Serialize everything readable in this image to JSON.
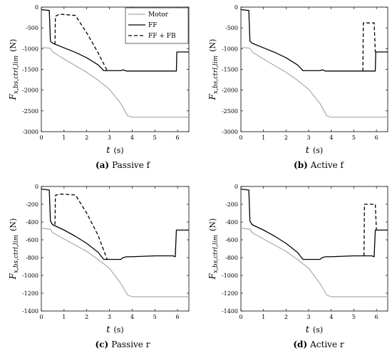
{
  "chart_data": [
    {
      "type": "line",
      "caption_letter": "(a)",
      "caption_text": "Passive f",
      "xlabel_var": "t",
      "xlabel_unit": "(s)",
      "ylabel_sym": "F",
      "ylabel_sub": "x,bs,ctrl,lim",
      "ylabel_unit": "(N)",
      "xlim": [
        0,
        6.5
      ],
      "ylim": [
        -3000,
        0
      ],
      "xticks": [
        "0",
        "1",
        "2",
        "3",
        "4",
        "5",
        "6"
      ],
      "yticks": [
        "-3000",
        "-2500",
        "-2000",
        "-1500",
        "-1000",
        "-500",
        "0"
      ],
      "legend": {
        "entries": [
          "Motor",
          "FF",
          "FF + FB"
        ],
        "position": "top-right"
      },
      "series": [
        {
          "name": "Motor",
          "color": "#aaaaaa",
          "dash": false,
          "x": [
            0,
            0.4,
            0.5,
            1.0,
            1.5,
            2.0,
            2.5,
            3.0,
            3.5,
            3.8,
            4.0,
            5.0,
            6.5
          ],
          "y": [
            -970,
            -990,
            -1080,
            -1250,
            -1410,
            -1570,
            -1760,
            -1980,
            -2320,
            -2620,
            -2650,
            -2650,
            -2650
          ]
        },
        {
          "name": "FF",
          "color": "#000000",
          "dash": false,
          "x": [
            0,
            0.35,
            0.4,
            0.5,
            1.0,
            1.5,
            2.0,
            2.5,
            2.75,
            3.5,
            3.6,
            3.75,
            4.0,
            5.0,
            5.95,
            5.97,
            6.5
          ],
          "y": [
            -60,
            -80,
            -820,
            -870,
            -980,
            -1090,
            -1220,
            -1390,
            -1530,
            -1530,
            -1510,
            -1540,
            -1540,
            -1540,
            -1540,
            -1080,
            -1080
          ]
        },
        {
          "name": "FF + FB",
          "color": "#000000",
          "dash": true,
          "x": [
            0.6,
            0.62,
            0.8,
            1.5,
            2.0,
            2.5,
            2.9
          ],
          "y": [
            -900,
            -220,
            -170,
            -200,
            -620,
            -1100,
            -1530
          ]
        }
      ]
    },
    {
      "type": "line",
      "caption_letter": "(b)",
      "caption_text": "Active f",
      "xlabel_var": "t",
      "xlabel_unit": "(s)",
      "ylabel_sym": "F",
      "ylabel_sub": "x,bs,ctrl,lim",
      "ylabel_unit": "(N)",
      "xlim": [
        0,
        6.5
      ],
      "ylim": [
        -3000,
        0
      ],
      "xticks": [
        "0",
        "1",
        "2",
        "3",
        "4",
        "5",
        "6"
      ],
      "yticks": [
        "-3000",
        "-2500",
        "-2000",
        "-1500",
        "-1000",
        "-500",
        "0"
      ],
      "series": [
        {
          "name": "Motor",
          "color": "#aaaaaa",
          "dash": false,
          "x": [
            0,
            0.4,
            0.5,
            1.0,
            1.5,
            2.0,
            2.5,
            3.0,
            3.5,
            3.8,
            4.0,
            5.0,
            6.5
          ],
          "y": [
            -970,
            -990,
            -1080,
            -1250,
            -1410,
            -1570,
            -1760,
            -1980,
            -2320,
            -2620,
            -2650,
            -2650,
            -2650
          ]
        },
        {
          "name": "FF",
          "color": "#000000",
          "dash": false,
          "x": [
            0,
            0.35,
            0.4,
            0.5,
            1.0,
            1.5,
            2.0,
            2.5,
            2.75,
            3.5,
            3.6,
            3.75,
            4.0,
            5.0,
            5.95,
            5.97,
            6.5
          ],
          "y": [
            -60,
            -80,
            -820,
            -870,
            -980,
            -1090,
            -1220,
            -1390,
            -1530,
            -1530,
            -1510,
            -1540,
            -1540,
            -1540,
            -1540,
            -1080,
            -1080
          ]
        },
        {
          "name": "FF + FB",
          "color": "#000000",
          "dash": true,
          "x": [
            5.4,
            5.42,
            5.6,
            5.9,
            5.95
          ],
          "y": [
            -1540,
            -380,
            -380,
            -380,
            -1080
          ]
        }
      ]
    },
    {
      "type": "line",
      "caption_letter": "(c)",
      "caption_text": "Passive r",
      "xlabel_var": "t",
      "xlabel_unit": "(s)",
      "ylabel_sym": "F",
      "ylabel_sub": "x,bs,ctrl,lim",
      "ylabel_unit": "(N)",
      "xlim": [
        0,
        6.5
      ],
      "ylim": [
        -1400,
        0
      ],
      "xticks": [
        "0",
        "1",
        "2",
        "3",
        "4",
        "5",
        "6"
      ],
      "yticks": [
        "-1400",
        "-1200",
        "-1000",
        "-800",
        "-600",
        "-400",
        "-200",
        "0"
      ],
      "series": [
        {
          "name": "Motor",
          "color": "#aaaaaa",
          "dash": false,
          "x": [
            0,
            0.4,
            0.5,
            1.0,
            1.5,
            2.0,
            2.5,
            3.0,
            3.5,
            3.8,
            4.0,
            5.0,
            6.5
          ],
          "y": [
            -470,
            -480,
            -520,
            -590,
            -660,
            -730,
            -820,
            -920,
            -1090,
            -1220,
            -1240,
            -1240,
            -1240
          ]
        },
        {
          "name": "FF",
          "color": "#000000",
          "dash": false,
          "x": [
            0,
            0.35,
            0.4,
            0.5,
            1.0,
            1.5,
            2.0,
            2.5,
            2.75,
            3.5,
            3.6,
            3.75,
            4.0,
            5.0,
            5.8,
            5.9,
            5.95,
            6.5
          ],
          "y": [
            -30,
            -40,
            -390,
            -430,
            -490,
            -560,
            -640,
            -740,
            -820,
            -820,
            -800,
            -790,
            -790,
            -780,
            -780,
            -790,
            -490,
            -490
          ]
        },
        {
          "name": "FF + FB",
          "color": "#000000",
          "dash": true,
          "x": [
            0.6,
            0.62,
            0.8,
            1.5,
            2.0,
            2.5,
            2.9
          ],
          "y": [
            -430,
            -100,
            -85,
            -95,
            -300,
            -550,
            -820
          ]
        }
      ]
    },
    {
      "type": "line",
      "caption_letter": "(d)",
      "caption_text": "Active r",
      "xlabel_var": "t",
      "xlabel_unit": "(s)",
      "ylabel_sym": "F",
      "ylabel_sub": "x,bs,ctrl,lim",
      "ylabel_unit": "(N)",
      "xlim": [
        0,
        6.5
      ],
      "ylim": [
        -1400,
        0
      ],
      "xticks": [
        "0",
        "1",
        "2",
        "3",
        "4",
        "5",
        "6"
      ],
      "yticks": [
        "-1400",
        "-1200",
        "-1000",
        "-800",
        "-600",
        "-400",
        "-200",
        "0"
      ],
      "series": [
        {
          "name": "Motor",
          "color": "#aaaaaa",
          "dash": false,
          "x": [
            0,
            0.4,
            0.5,
            1.0,
            1.5,
            2.0,
            2.5,
            3.0,
            3.5,
            3.8,
            4.0,
            5.0,
            6.5
          ],
          "y": [
            -470,
            -480,
            -520,
            -590,
            -660,
            -730,
            -820,
            -920,
            -1090,
            -1220,
            -1240,
            -1240,
            -1240
          ]
        },
        {
          "name": "FF",
          "color": "#000000",
          "dash": false,
          "x": [
            0,
            0.35,
            0.4,
            0.5,
            1.0,
            1.5,
            2.0,
            2.5,
            2.75,
            3.5,
            3.6,
            3.75,
            4.0,
            5.0,
            5.8,
            5.9,
            5.95,
            6.5
          ],
          "y": [
            -30,
            -40,
            -390,
            -430,
            -490,
            -560,
            -640,
            -740,
            -820,
            -820,
            -800,
            -790,
            -790,
            -780,
            -780,
            -790,
            -490,
            -490
          ]
        },
        {
          "name": "FF + FB",
          "color": "#000000",
          "dash": true,
          "x": [
            5.45,
            5.47,
            5.6,
            5.95,
            6.0
          ],
          "y": [
            -780,
            -200,
            -200,
            -200,
            -490
          ]
        }
      ]
    }
  ]
}
